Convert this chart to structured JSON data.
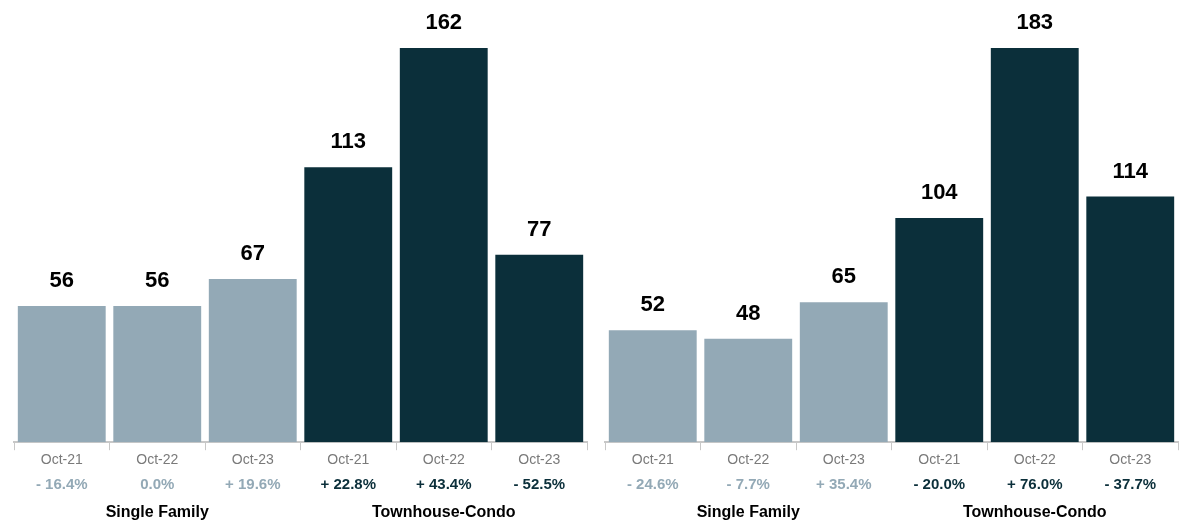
{
  "chart_data": [
    {
      "type": "bar",
      "categories": [
        "Oct-21",
        "Oct-22",
        "Oct-23",
        "Oct-21",
        "Oct-22",
        "Oct-23"
      ],
      "series": [
        {
          "color": "#93a9b6",
          "values": [
            56,
            56,
            67,
            null,
            null,
            null
          ]
        },
        {
          "color": "#0b2f3a",
          "values": [
            null,
            null,
            null,
            113,
            162,
            77
          ]
        }
      ],
      "data_labels": true,
      "annotations": [
        "- 16.4%",
        "0.0%",
        "+ 19.6%",
        "+ 22.8%",
        "+ 43.4%",
        "- 52.5%",
        "Single Family",
        "Townhouse-Condo"
      ]
    },
    {
      "type": "bar",
      "categories": [
        "Oct-21",
        "Oct-22",
        "Oct-23",
        "Oct-21",
        "Oct-22",
        "Oct-23"
      ],
      "series": [
        {
          "color": "#93a9b6",
          "values": [
            52,
            48,
            65,
            null,
            null,
            null
          ]
        },
        {
          "color": "#0b2f3a",
          "values": [
            null,
            null,
            null,
            104,
            183,
            114
          ]
        }
      ],
      "data_labels": true,
      "annotations": [
        "- 24.6%",
        "- 7.7%",
        "+ 35.4%",
        "- 20.0%",
        "+ 76.0%",
        "- 37.7%",
        "Single Family",
        "Townhouse-Condo"
      ]
    }
  ]
}
